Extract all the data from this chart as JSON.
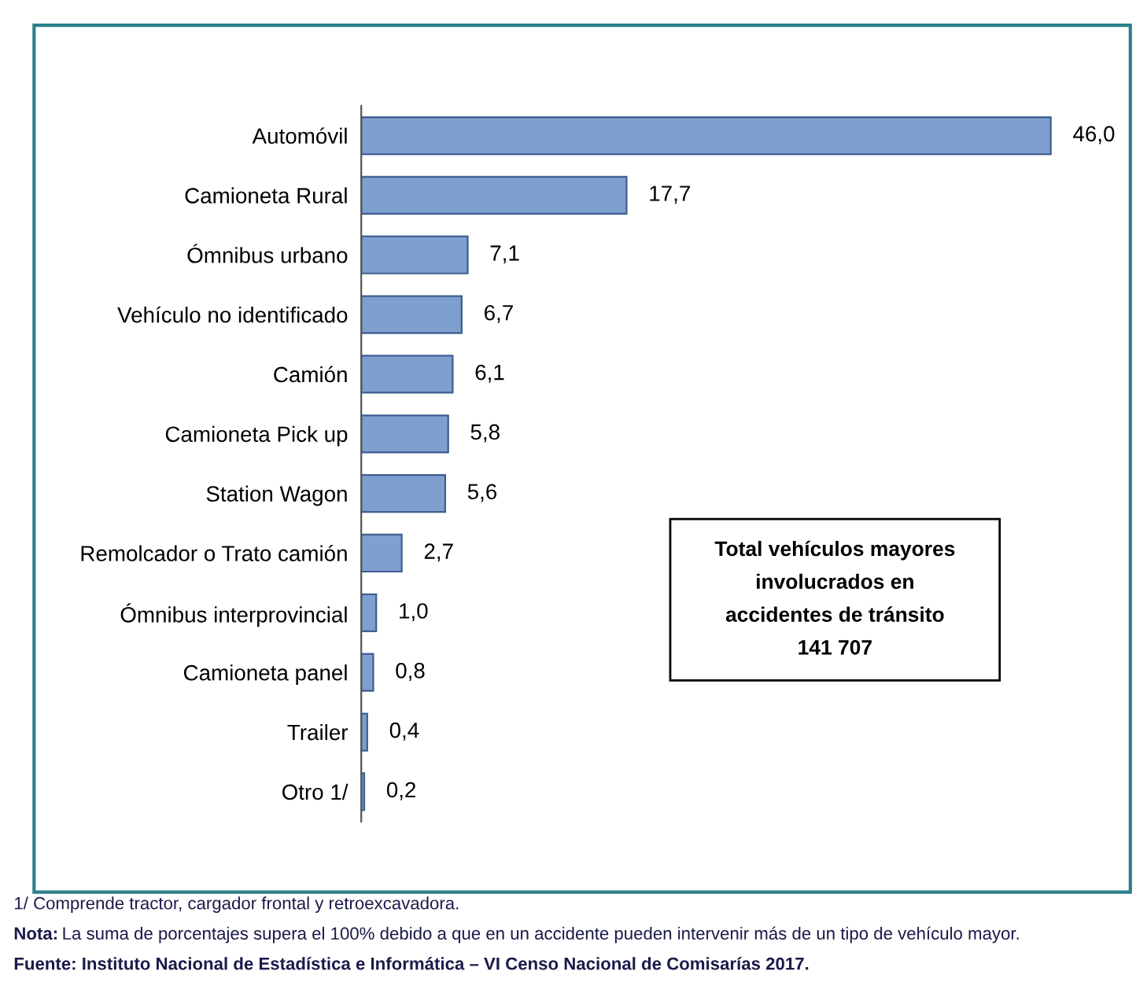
{
  "chart_data": {
    "type": "bar",
    "orientation": "horizontal",
    "categories": [
      "Automóvil",
      "Camioneta Rural",
      "Ómnibus urbano",
      "Vehículo no identificado",
      "Camión",
      "Camioneta Pick up",
      "Station Wagon",
      "Remolcador o Trato camión",
      "Ómnibus interprovincial",
      "Camioneta panel",
      "Trailer",
      "Otro 1/"
    ],
    "values": [
      46.0,
      17.7,
      7.1,
      6.7,
      6.1,
      5.8,
      5.6,
      2.7,
      1.0,
      0.8,
      0.4,
      0.2
    ],
    "value_labels": [
      "46,0",
      "17,7",
      "7,1",
      "6,7",
      "6,1",
      "5,8",
      "5,6",
      "2,7",
      "1,0",
      "0,8",
      "0,4",
      "0,2"
    ],
    "color": "#7f9fcf",
    "annotations": [
      "Total vehículos mayores\ninvolucrados en\naccidentes de tránsito\n141 707",
      "1/ Comprende tractor, cargador frontal y retroexcavadora.",
      "Nota: La suma de porcentajes supera el 100% debido a que en un accidente pueden intervenir más de un tipo de vehículo mayor.",
      "Fuente: Instituto Nacional de Estadística e Informática – VI Censo Nacional de Comisarías 2017."
    ]
  }
}
